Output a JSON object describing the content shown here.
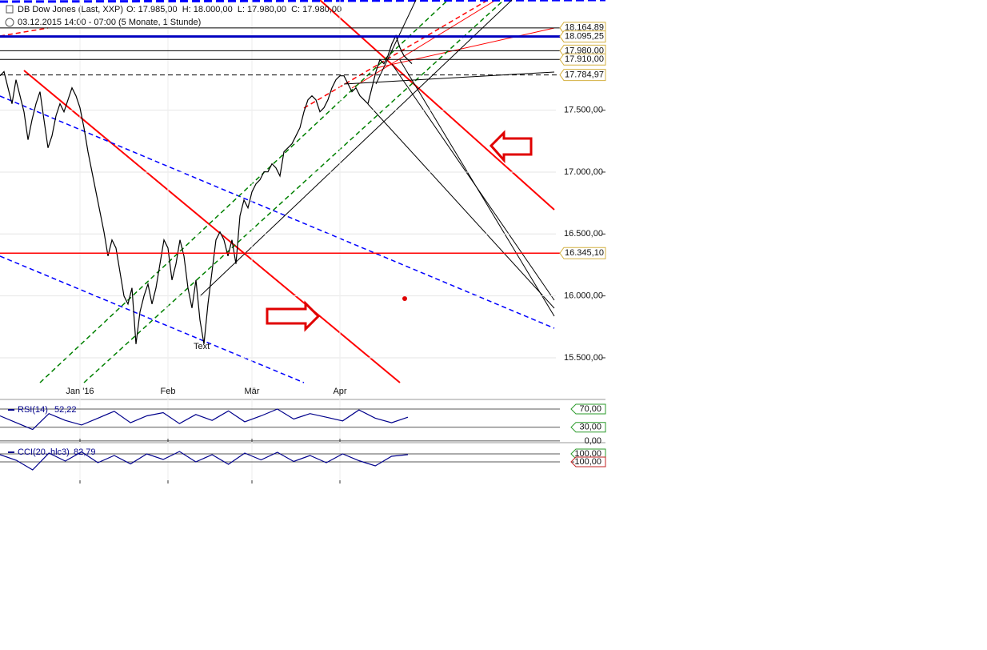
{
  "header": {
    "title": "DB Dow Jones (Last, XXP)",
    "ohlc": "O: 17.985,00  H: 18.000,00  L: 17.980,00  C: 17.980,00",
    "period": "03.12.2015 14:00 - 07:00 (5 Monate, 1 Stunde)"
  },
  "chart_data": [
    {
      "type": "line",
      "color": "#000000",
      "categories": [
        null,
        null,
        null,
        null,
        null,
        null,
        null,
        null,
        null,
        null,
        null,
        null,
        null,
        null,
        null,
        null,
        null,
        null,
        null,
        null,
        "Jan '16",
        null,
        null,
        null,
        null,
        null,
        null,
        null,
        null,
        null,
        null,
        null,
        null,
        null,
        null,
        null,
        null,
        null,
        null,
        null,
        null,
        null,
        "Feb",
        null,
        null,
        null,
        null,
        null,
        null,
        null,
        null,
        null,
        null,
        null,
        null,
        null,
        null,
        null,
        null,
        null,
        null,
        null,
        null,
        "Mär",
        null,
        null,
        null,
        null,
        null,
        null,
        null,
        null,
        null,
        null,
        null,
        null,
        null,
        null,
        null,
        null,
        null,
        null,
        null,
        null,
        null,
        "Apr",
        null,
        null,
        null,
        null,
        null,
        null,
        null,
        null,
        null,
        null,
        null,
        null,
        null,
        null,
        null,
        null,
        null,
        null
      ],
      "values": [
        17778,
        17811,
        17681,
        17552,
        17746,
        17616,
        17487,
        17261,
        17422,
        17552,
        17649,
        17422,
        17196,
        17293,
        17455,
        17552,
        17487,
        17584,
        17681,
        17616,
        17519,
        17358,
        17164,
        17002,
        16840,
        16678,
        16517,
        16322,
        16452,
        16387,
        16193,
        15999,
        15934,
        16064,
        15611,
        15870,
        15999,
        16096,
        15934,
        16064,
        16258,
        16452,
        16387,
        16128,
        16258,
        16452,
        16322,
        16064,
        15902,
        16128,
        15805,
        15611,
        15934,
        16193,
        16452,
        16517,
        16452,
        16322,
        16452,
        16258,
        16646,
        16775,
        16711,
        16840,
        16905,
        16937,
        17002,
        17002,
        17067,
        17034,
        16969,
        17164,
        17196,
        17228,
        17293,
        17358,
        17487,
        17584,
        17616,
        17584,
        17487,
        17519,
        17584,
        17681,
        17746,
        17778,
        17778,
        17714,
        17649,
        17681,
        17616,
        17584,
        17552,
        17681,
        17811,
        17908,
        17875,
        17940,
        18037,
        18102,
        18005,
        17940,
        17908,
        17875
      ],
      "ylim": [
        15170,
        18390
      ],
      "yticks": [
        {
          "value": 15500,
          "label": "15.500,00"
        },
        {
          "value": 16000,
          "label": "16.000,00"
        },
        {
          "value": 16500,
          "label": "16.500,00"
        },
        {
          "value": 17000,
          "label": "17.000,00"
        },
        {
          "value": 17500,
          "label": "17.500,00"
        }
      ],
      "levels": [
        {
          "value": 18164.89,
          "label": "18.164,89",
          "color": "#000000"
        },
        {
          "value": 18095.25,
          "label": "18.095,25",
          "color": "#0000c0"
        },
        {
          "value": 17980,
          "label": "17.980,00",
          "color": "#000000"
        },
        {
          "value": 17910,
          "label": "17.910,00",
          "color": "#000000"
        },
        {
          "value": 17784.97,
          "label": "17.784,97",
          "color": "#000000"
        },
        {
          "value": 16345.1,
          "label": "16.345,10",
          "color": "#ff0000"
        }
      ],
      "annotation": "Text",
      "grid": true
    },
    {
      "type": "line",
      "title": "RSI(14)",
      "value_label": "52,22",
      "color": "#00008b",
      "values": [
        55,
        40,
        25,
        60,
        45,
        35,
        50,
        65,
        40,
        55,
        62,
        38,
        58,
        45,
        66,
        42,
        55,
        70,
        48,
        60,
        52,
        44,
        68,
        50,
        40,
        52
      ],
      "ylim": [
        -2,
        84
      ],
      "yticks": [
        {
          "value": 70,
          "label": "70,00"
        },
        {
          "value": 30,
          "label": "30,00"
        },
        {
          "value": 0,
          "label": "0,00"
        }
      ]
    },
    {
      "type": "line",
      "title": "CCI(20, hlc3)",
      "value_label": "82,79",
      "color": "#00008b",
      "values": [
        80,
        -60,
        -300,
        120,
        -80,
        150,
        -120,
        60,
        -150,
        100,
        -40,
        160,
        -100,
        80,
        -160,
        120,
        -50,
        140,
        -90,
        60,
        -120,
        100,
        -70,
        -200,
        40,
        83
      ],
      "ylim": [
        -560,
        320
      ],
      "yticks": [
        {
          "value": 100,
          "label": "100,00"
        },
        {
          "value": -100,
          "label": "-100,00"
        }
      ]
    }
  ]
}
